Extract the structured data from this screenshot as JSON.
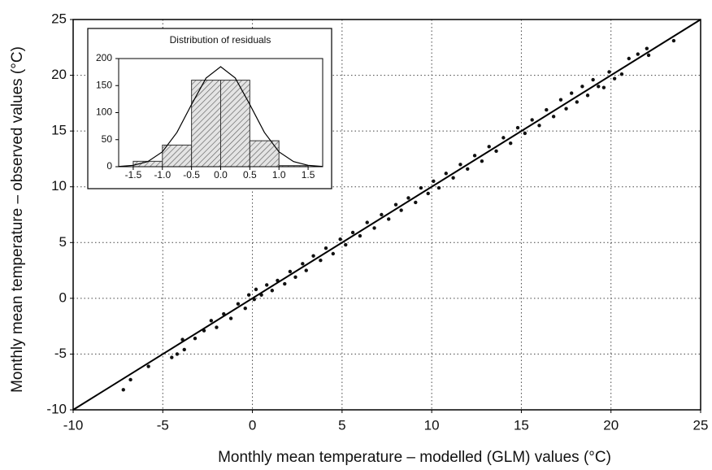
{
  "chart_data": [
    {
      "type": "scatter",
      "xlabel": "Monthly mean temperature – modelled (GLM) values (°C)",
      "ylabel": "Monthly mean temperature – observed values (°C)",
      "xlim": [
        -10,
        25
      ],
      "ylim": [
        -10,
        25
      ],
      "xticks": [
        -10,
        -5,
        0,
        5,
        10,
        15,
        20,
        25
      ],
      "yticks": [
        -10,
        -5,
        0,
        5,
        10,
        15,
        20,
        25
      ],
      "grid": true,
      "series": [
        {
          "type": "scatter",
          "color": "#111111",
          "x": [
            -7.2,
            -6.8,
            -5.8,
            -4.5,
            -4.2,
            -3.8,
            -3.9,
            -3.2,
            -2.7,
            -2.3,
            -2.0,
            -1.6,
            -1.2,
            -0.8,
            -0.4,
            -0.2,
            0.1,
            0.2,
            0.5,
            0.8,
            1.1,
            1.4,
            1.8,
            2.1,
            2.4,
            2.8,
            3.0,
            3.4,
            3.8,
            4.1,
            4.5,
            4.9,
            5.2,
            5.6,
            6.0,
            6.4,
            6.8,
            7.2,
            7.6,
            8.0,
            8.3,
            8.7,
            9.1,
            9.4,
            9.8,
            10.1,
            10.4,
            10.8,
            11.2,
            11.6,
            12.0,
            12.4,
            12.8,
            13.2,
            13.6,
            14.0,
            14.4,
            14.8,
            15.2,
            15.6,
            16.0,
            16.4,
            16.8,
            17.2,
            17.5,
            17.8,
            18.1,
            18.4,
            18.7,
            19.0,
            19.3,
            19.6,
            19.9,
            20.2,
            20.6,
            21.0,
            21.5,
            22.0,
            22.1,
            23.5
          ],
          "values": [
            -8.2,
            -7.3,
            -6.1,
            -5.3,
            -5.0,
            -4.6,
            -3.7,
            -3.6,
            -2.9,
            -2.0,
            -2.6,
            -1.4,
            -1.8,
            -0.5,
            -0.9,
            0.3,
            -0.1,
            0.8,
            0.3,
            1.2,
            0.7,
            1.6,
            1.3,
            2.4,
            1.9,
            3.1,
            2.5,
            3.8,
            3.4,
            4.5,
            4.0,
            5.3,
            4.8,
            5.9,
            5.6,
            6.8,
            6.3,
            7.5,
            7.1,
            8.4,
            7.9,
            9.0,
            8.6,
            9.9,
            9.4,
            10.5,
            9.9,
            11.2,
            10.8,
            12.0,
            11.6,
            12.8,
            12.3,
            13.6,
            13.2,
            14.4,
            13.9,
            15.3,
            14.8,
            16.0,
            15.5,
            16.9,
            16.3,
            17.8,
            17.0,
            18.4,
            17.6,
            19.0,
            18.2,
            19.6,
            19.0,
            18.9,
            20.3,
            19.7,
            20.1,
            21.5,
            21.9,
            22.4,
            21.8,
            23.1
          ]
        },
        {
          "type": "line",
          "color": "#000000",
          "x": [
            -10,
            25
          ],
          "values": [
            -10,
            25
          ]
        }
      ]
    },
    {
      "type": "histogram",
      "title": "Distribution of residuals",
      "bins": [
        -1.5,
        -1,
        -0.5,
        0,
        0.5,
        1,
        1.5
      ],
      "values": [
        10,
        40,
        160,
        160,
        48,
        2
      ],
      "color": "#333333",
      "xlim": [
        -1.75,
        1.75
      ],
      "ylim": [
        0,
        200
      ],
      "xticks": [
        -1.5,
        {
          "value": -1,
          "label": "-1.0"
        },
        -0.5,
        {
          "value": 0,
          "label": "0.0"
        },
        0.5,
        {
          "value": 1,
          "label": "1.0"
        },
        1.5
      ],
      "yticks": [
        0,
        50,
        100,
        150,
        200
      ],
      "curve": {
        "color": "#000000",
        "x": [
          -1.75,
          -1.5,
          -1.25,
          -1,
          -0.75,
          -0.5,
          -0.25,
          0,
          0.25,
          0.5,
          0.75,
          1,
          1.25,
          1.5,
          1.75
        ],
        "values": [
          0.5,
          2.5,
          9.4,
          27.5,
          63.4,
          115,
          164,
          185,
          164,
          115,
          63.4,
          27.5,
          9.4,
          2.5,
          0.5
        ]
      }
    }
  ]
}
